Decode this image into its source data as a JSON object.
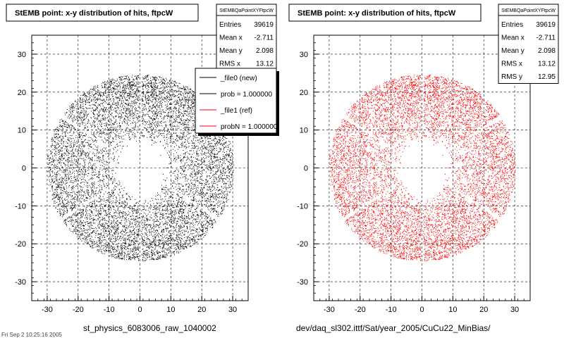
{
  "panels": [
    {
      "title": "StEMB point: x-y distribution of hits, ftpcW",
      "xlabel": "st_physics_6083006_raw_1040002",
      "color": "#000000",
      "stats": {
        "name": "StEMBQaPointXYFtpcW",
        "rows": [
          {
            "label": "Entries",
            "value": "39619"
          },
          {
            "label": "Mean x",
            "value": "-2.711"
          },
          {
            "label": "Mean y",
            "value": "2.098"
          },
          {
            "label": "RMS x",
            "value": "13.12"
          }
        ]
      },
      "legend": [
        {
          "label": "_file0 (new)",
          "color": "#000000"
        },
        {
          "label": "prob = 1.000000",
          "color": "#000000"
        },
        {
          "label": "_file1 (ref)",
          "color": "#ff0000"
        },
        {
          "label": "probN = 1.000000",
          "color": "#ff0000"
        }
      ]
    },
    {
      "title": "StEMB point: x-y distribution of hits, ftpcW",
      "xlabel": "dev/daq_sl302.ittf/Sat/year_2005/CuCu22_MinBias/",
      "color": "#ff0000",
      "stats": {
        "name": "StEMBQaPointXYFtpcW",
        "rows": [
          {
            "label": "Entries",
            "value": "39619"
          },
          {
            "label": "Mean x",
            "value": "-2.711"
          },
          {
            "label": "Mean y",
            "value": "2.098"
          },
          {
            "label": "RMS x",
            "value": "13.12"
          },
          {
            "label": "RMS y",
            "value": "12.95"
          }
        ]
      }
    }
  ],
  "footer_text": "Fri Sep 2 10:25:16 2005",
  "chart_data": [
    {
      "type": "scatter",
      "title": "StEMB point: x-y distribution of hits, ftpcW",
      "xlabel": "st_physics_6083006_raw_1040002",
      "ylabel": "",
      "xlim": [
        -35,
        35
      ],
      "ylim": [
        -35,
        35
      ],
      "x_ticks": [
        -30,
        -20,
        -10,
        0,
        10,
        20,
        30
      ],
      "y_ticks": [
        -30,
        -20,
        -10,
        0,
        10,
        20,
        30
      ],
      "grid": true,
      "distribution": {
        "shape": "annulus",
        "inner_radius": 6.5,
        "outer_radius": 28,
        "center": [
          0,
          0
        ],
        "sector_gaps_deg": [
          90,
          150,
          210,
          270,
          330,
          30
        ]
      },
      "stats": {
        "entries": 39619,
        "mean_x": -2.711,
        "mean_y": 2.098,
        "rms_x": 13.12
      },
      "series": [
        {
          "name": "_file0 (new)",
          "color": "#000000"
        },
        {
          "name": "_file1 (ref)",
          "color": "#ff0000"
        }
      ]
    },
    {
      "type": "scatter",
      "title": "StEMB point: x-y distribution of hits, ftpcW",
      "xlabel": "dev/daq_sl302.ittf/Sat/year_2005/CuCu22_MinBias/",
      "ylabel": "",
      "xlim": [
        -35,
        35
      ],
      "ylim": [
        -35,
        35
      ],
      "x_ticks": [
        -30,
        -20,
        -10,
        0,
        10,
        20,
        30
      ],
      "y_ticks": [
        -30,
        -20,
        -10,
        0,
        10,
        20,
        30
      ],
      "grid": true,
      "distribution": {
        "shape": "annulus",
        "inner_radius": 6.5,
        "outer_radius": 28,
        "center": [
          0,
          0
        ],
        "sector_gaps_deg": [
          90,
          150,
          210,
          270,
          330,
          30
        ]
      },
      "stats": {
        "entries": 39619,
        "mean_x": -2.711,
        "mean_y": 2.098,
        "rms_x": 13.12,
        "rms_y": 12.95
      },
      "series": [
        {
          "name": "",
          "color": "#ff0000"
        }
      ]
    }
  ]
}
